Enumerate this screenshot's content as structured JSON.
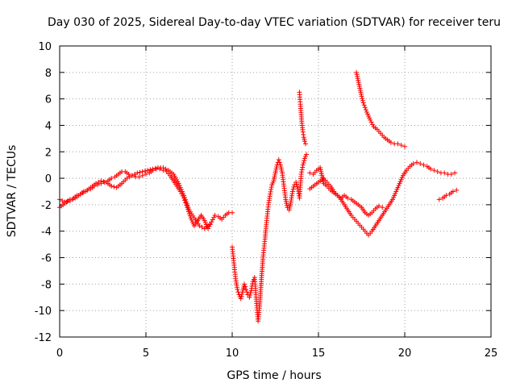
{
  "chart_data": {
    "type": "scatter",
    "title": "Day 030 of 2025, Sidereal Day-to-day VTEC variation (SDTVAR) for receiver teru",
    "xlabel": "GPS time / hours",
    "ylabel": "SDTVAR / TECUs",
    "xlim": [
      0,
      25
    ],
    "ylim": [
      -12,
      10
    ],
    "xticks": [
      "0",
      "5",
      "10",
      "15",
      "20",
      "25"
    ],
    "yticks": [
      "-12",
      "-10",
      "-8",
      "-6",
      "-4",
      "-2",
      "0",
      "2",
      "4",
      "6",
      "8",
      "10"
    ],
    "grid": true,
    "marker": "plus",
    "color": "#ff0000",
    "series": [
      {
        "x": [
          0.0,
          0.2,
          0.4,
          0.6,
          0.8,
          1.0,
          1.2,
          1.4,
          1.6,
          1.8,
          2.0,
          2.2,
          2.4,
          2.6,
          2.8,
          3.0,
          3.2,
          3.4,
          3.6,
          3.8,
          4.0,
          4.2,
          4.4,
          4.6,
          4.8,
          5.0,
          5.2,
          5.4,
          5.6,
          5.8,
          6.0,
          6.2,
          6.4,
          6.6,
          6.8,
          7.0,
          7.2,
          7.4,
          7.6,
          7.8,
          8.0,
          8.2,
          8.4,
          8.6,
          8.8,
          9.0,
          9.2,
          9.4,
          9.6,
          9.8,
          10.0
        ],
        "y": [
          -2.2,
          -2.0,
          -1.8,
          -1.6,
          -1.5,
          -1.3,
          -1.2,
          -1.0,
          -0.9,
          -0.8,
          -0.6,
          -0.5,
          -0.4,
          -0.3,
          -0.2,
          0.0,
          0.1,
          0.3,
          0.5,
          0.5,
          0.3,
          0.2,
          0.1,
          0.1,
          0.2,
          0.3,
          0.4,
          0.6,
          0.7,
          0.7,
          0.6,
          0.5,
          0.2,
          -0.2,
          -0.6,
          -1.0,
          -1.5,
          -2.2,
          -3.0,
          -3.6,
          -3.2,
          -2.8,
          -3.2,
          -3.8,
          -3.3,
          -2.8,
          -2.9,
          -3.1,
          -2.8,
          -2.6,
          -2.6
        ]
      },
      {
        "x": [
          0.0,
          0.3,
          0.6,
          0.9,
          1.2,
          1.5,
          1.8,
          2.1,
          2.4,
          2.7,
          3.0,
          3.3,
          3.6,
          3.9,
          4.2,
          4.5,
          4.8,
          5.1,
          5.4,
          5.7,
          6.0,
          6.3,
          6.6,
          6.9,
          7.2,
          7.5,
          7.8,
          8.1,
          8.4,
          8.7
        ],
        "y": [
          -1.6,
          -1.8,
          -1.7,
          -1.5,
          -1.2,
          -1.0,
          -0.7,
          -0.4,
          -0.2,
          -0.3,
          -0.6,
          -0.7,
          -0.4,
          0.0,
          0.2,
          0.4,
          0.5,
          0.6,
          0.7,
          0.8,
          0.8,
          0.6,
          0.3,
          -0.4,
          -1.3,
          -2.4,
          -3.0,
          -3.6,
          -3.8,
          -3.5
        ]
      },
      {
        "x": [
          10.0,
          10.1,
          10.2,
          10.3,
          10.4,
          10.5,
          10.6,
          10.7,
          10.8,
          10.9,
          11.0,
          11.1,
          11.2,
          11.3,
          11.4,
          11.5,
          11.6,
          11.7,
          11.8,
          11.9,
          12.0,
          12.1,
          12.2,
          12.3,
          12.4,
          12.5,
          12.6,
          12.7,
          12.8,
          12.9,
          13.0,
          13.1,
          13.2,
          13.3,
          13.4,
          13.5,
          13.6,
          13.7,
          13.8,
          13.9,
          14.0,
          14.1,
          14.2,
          14.3
        ],
        "y": [
          -5.2,
          -6.4,
          -7.6,
          -8.4,
          -8.8,
          -9.1,
          -8.6,
          -8.0,
          -8.4,
          -8.8,
          -9.0,
          -8.5,
          -7.8,
          -7.5,
          -9.3,
          -10.8,
          -9.5,
          -7.5,
          -5.8,
          -4.6,
          -3.2,
          -2.0,
          -1.2,
          -0.5,
          -0.2,
          0.4,
          1.0,
          1.4,
          1.0,
          0.4,
          -0.6,
          -1.6,
          -2.2,
          -2.4,
          -1.8,
          -1.0,
          -0.5,
          -0.3,
          -0.8,
          -1.5,
          0.3,
          1.0,
          1.5,
          1.8
        ]
      },
      {
        "x": [
          13.9,
          13.95,
          14.0,
          14.05,
          14.1,
          14.15,
          14.2,
          14.25
        ],
        "y": [
          6.5,
          5.6,
          4.8,
          4.0,
          3.5,
          3.1,
          2.8,
          2.6
        ]
      },
      {
        "x": [
          14.5,
          14.7,
          14.9,
          15.1,
          15.3,
          15.5,
          15.7,
          15.9,
          16.1,
          16.3,
          16.5,
          16.7,
          16.9,
          17.1,
          17.3,
          17.5,
          17.7,
          17.9,
          18.1,
          18.3,
          18.5,
          18.7
        ],
        "y": [
          0.4,
          0.3,
          0.6,
          0.8,
          -0.4,
          -0.6,
          -0.9,
          -1.1,
          -1.3,
          -1.5,
          -1.3,
          -1.5,
          -1.6,
          -1.8,
          -2.0,
          -2.2,
          -2.6,
          -2.8,
          -2.6,
          -2.3,
          -2.1,
          -2.2
        ]
      },
      {
        "x": [
          14.5,
          14.7,
          14.9,
          15.1,
          15.3,
          15.5,
          15.7,
          15.9,
          16.1,
          16.3,
          16.5,
          16.7,
          16.9,
          17.1,
          17.3,
          17.5,
          17.7,
          17.9,
          18.1,
          18.3,
          18.5,
          18.7,
          18.9,
          19.1,
          19.3,
          19.5,
          19.7,
          19.9,
          20.1,
          20.3,
          20.5,
          20.7,
          20.9,
          21.1,
          21.3,
          21.5,
          21.7,
          21.9,
          22.1,
          22.3,
          22.5,
          22.7,
          22.9
        ],
        "y": [
          -0.8,
          -0.6,
          -0.4,
          -0.2,
          0.0,
          -0.3,
          -0.6,
          -1.0,
          -1.3,
          -1.6,
          -2.0,
          -2.4,
          -2.8,
          -3.1,
          -3.4,
          -3.7,
          -4.0,
          -4.3,
          -4.0,
          -3.6,
          -3.2,
          -2.8,
          -2.4,
          -2.0,
          -1.6,
          -1.0,
          -0.4,
          0.2,
          0.6,
          0.9,
          1.1,
          1.2,
          1.1,
          1.0,
          0.9,
          0.7,
          0.6,
          0.5,
          0.4,
          0.4,
          0.3,
          0.3,
          0.4
        ]
      },
      {
        "x": [
          17.2,
          17.3,
          17.4,
          17.5,
          17.6,
          17.8,
          18.0,
          18.2,
          18.4,
          18.6,
          18.8,
          19.0,
          19.2,
          19.4,
          19.6,
          19.8,
          20.0
        ],
        "y": [
          8.0,
          7.4,
          6.8,
          6.2,
          5.7,
          5.0,
          4.4,
          3.9,
          3.7,
          3.4,
          3.1,
          2.9,
          2.7,
          2.6,
          2.6,
          2.5,
          2.4
        ]
      },
      {
        "x": [
          22.0,
          22.2,
          22.4,
          22.6,
          22.8,
          23.0
        ],
        "y": [
          -1.6,
          -1.5,
          -1.3,
          -1.2,
          -1.0,
          -0.9
        ]
      }
    ]
  }
}
